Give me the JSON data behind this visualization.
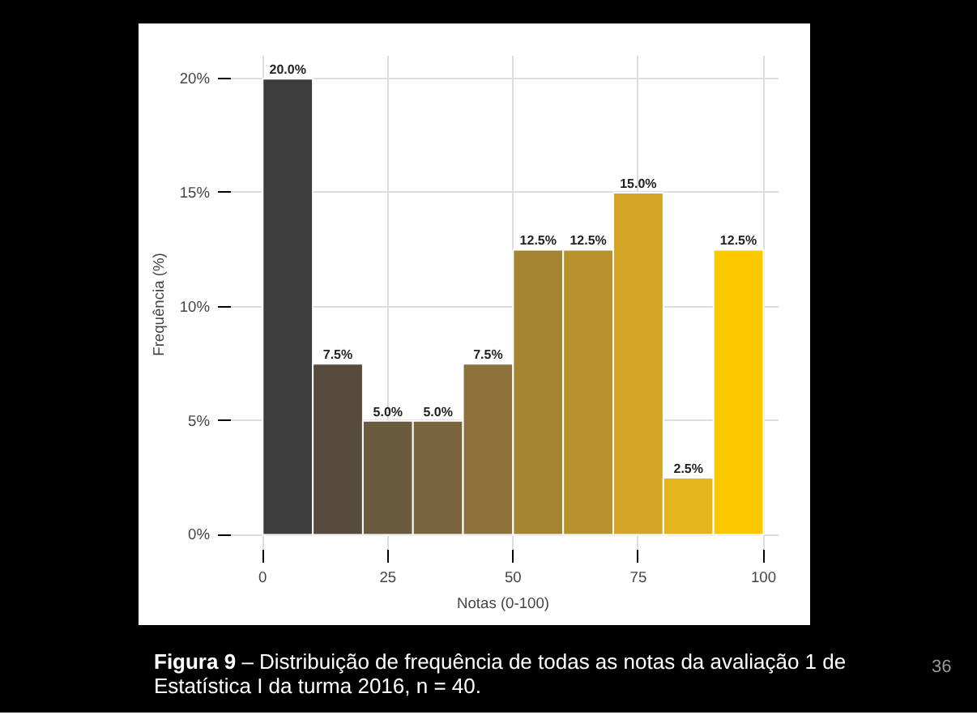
{
  "chart_data": {
    "type": "histogram",
    "xlabel": "Notas (0-100)",
    "ylabel": "Frequência (%)",
    "bins": [
      0,
      10,
      20,
      30,
      40,
      50,
      60,
      70,
      80,
      90,
      100
    ],
    "values": [
      20,
      7.5,
      5,
      5,
      7.5,
      12.5,
      12.5,
      15,
      2.5,
      12.5
    ],
    "value_labels": [
      "20.0%",
      "7.5%",
      "5.0%",
      "5.0%",
      "7.5%",
      "12.5%",
      "12.5%",
      "15.0%",
      "2.5%",
      "12.5%"
    ],
    "colors": [
      "#3d3d3d",
      "#564b3c",
      "#6a5a3e",
      "#78653d",
      "#8c723a",
      "#a4842f",
      "#b79129",
      "#d2a526",
      "#e4b51c",
      "#fcc800"
    ],
    "xlim": [
      -7,
      103
    ],
    "ylim": [
      -0.8,
      21
    ],
    "xticks": [
      0,
      25,
      50,
      75,
      100
    ],
    "yticks": [
      {
        "value": 0,
        "label": "0%"
      },
      {
        "value": 5,
        "label": "5%"
      },
      {
        "value": 10,
        "label": "10%"
      },
      {
        "value": 15,
        "label": "15%"
      },
      {
        "value": 20,
        "label": "20%"
      }
    ],
    "grid": true,
    "annotations": [
      "Figura 9 – Distribuição de frequência de todas as notas da avaliação 1 de Estatística I da turma 2016, n = 40.",
      "36"
    ]
  }
}
